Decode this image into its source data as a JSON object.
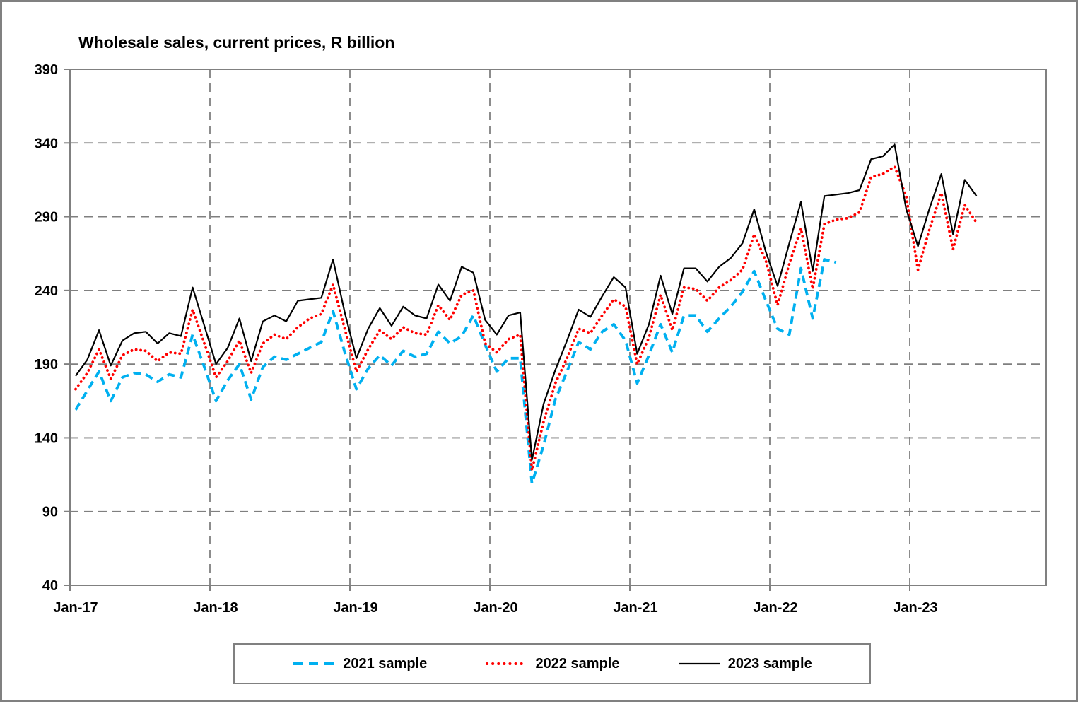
{
  "title": "Wholesale sales, current prices, R billion",
  "colors": {
    "grid": "#7F7F7F",
    "frame": "#808080",
    "background": "#FFFFFF"
  },
  "chart_data": {
    "type": "line",
    "title": "Wholesale sales, current prices, R billion",
    "xlabel": "",
    "ylabel": "R billion",
    "ylim": [
      40,
      390
    ],
    "y_ticks": [
      40,
      90,
      140,
      190,
      240,
      290,
      340,
      390
    ],
    "x_tick_labels": [
      "Jan-17",
      "Jan-18",
      "Jan-19",
      "Jan-20",
      "Jan-21",
      "Jan-22",
      "Jan-23"
    ],
    "grid": "dashed gray horizontal and vertical",
    "legend_position": "bottom",
    "months": [
      "Jan-17",
      "Feb-17",
      "Mar-17",
      "Apr-17",
      "May-17",
      "Jun-17",
      "Jul-17",
      "Aug-17",
      "Sep-17",
      "Oct-17",
      "Nov-17",
      "Dec-17",
      "Jan-18",
      "Feb-18",
      "Mar-18",
      "Apr-18",
      "May-18",
      "Jun-18",
      "Jul-18",
      "Aug-18",
      "Sep-18",
      "Oct-18",
      "Nov-18",
      "Dec-18",
      "Jan-19",
      "Feb-19",
      "Mar-19",
      "Apr-19",
      "May-19",
      "Jun-19",
      "Jul-19",
      "Aug-19",
      "Sep-19",
      "Oct-19",
      "Nov-19",
      "Dec-19",
      "Jan-20",
      "Feb-20",
      "Mar-20",
      "Apr-20",
      "May-20",
      "Jun-20",
      "Jul-20",
      "Aug-20",
      "Sep-20",
      "Oct-20",
      "Nov-20",
      "Dec-20",
      "Jan-21",
      "Feb-21",
      "Mar-21",
      "Apr-21",
      "May-21",
      "Jun-21",
      "Jul-21",
      "Aug-21",
      "Sep-21",
      "Oct-21",
      "Nov-21",
      "Dec-21",
      "Jan-22",
      "Feb-22",
      "Mar-22",
      "Apr-22",
      "May-22",
      "Jun-22",
      "Jul-22",
      "Aug-22",
      "Sep-22",
      "Oct-22",
      "Nov-22",
      "Dec-22",
      "Jan-23",
      "Feb-23",
      "Mar-23",
      "Apr-23",
      "May-23",
      "Jun-23"
    ],
    "series": [
      {
        "name": "2021 sample",
        "color": "#00B0F0",
        "style": "dashed",
        "values": [
          159,
          172,
          185,
          165,
          181,
          184,
          183,
          178,
          183,
          181,
          210,
          188,
          165,
          179,
          190,
          166,
          188,
          195,
          193,
          197,
          201,
          205,
          226,
          198,
          173,
          187,
          196,
          189,
          199,
          195,
          197,
          212,
          204,
          209,
          223,
          203,
          185,
          194,
          194,
          109,
          135,
          166,
          185,
          205,
          200,
          212,
          217,
          206,
          177,
          196,
          217,
          198,
          223,
          223,
          212,
          221,
          229,
          239,
          253,
          233,
          214,
          210,
          255,
          221,
          261,
          259
        ]
      },
      {
        "name": "2022 sample",
        "color": "#FF0000",
        "style": "dotted",
        "values": [
          173,
          184,
          200,
          180,
          196,
          200,
          199,
          192,
          198,
          197,
          227,
          204,
          181,
          192,
          206,
          184,
          204,
          210,
          207,
          215,
          221,
          224,
          244,
          214,
          185,
          200,
          213,
          207,
          215,
          211,
          210,
          230,
          220,
          237,
          240,
          204,
          198,
          207,
          210,
          118,
          151,
          177,
          194,
          214,
          211,
          223,
          234,
          229,
          190,
          208,
          237,
          213,
          242,
          241,
          233,
          242,
          247,
          254,
          278,
          260,
          230,
          258,
          282,
          241,
          285,
          288,
          289,
          293,
          317,
          319,
          324,
          304,
          254,
          282,
          306,
          268,
          298,
          286
        ]
      },
      {
        "name": "2023 sample",
        "color": "#000000",
        "style": "solid",
        "values": [
          182,
          193,
          213,
          189,
          206,
          211,
          212,
          204,
          211,
          209,
          242,
          216,
          190,
          201,
          221,
          192,
          219,
          223,
          219,
          233,
          234,
          235,
          261,
          225,
          194,
          214,
          228,
          216,
          229,
          223,
          221,
          244,
          233,
          256,
          252,
          220,
          210,
          223,
          225,
          125,
          163,
          186,
          206,
          227,
          222,
          236,
          249,
          242,
          197,
          217,
          250,
          224,
          255,
          255,
          246,
          256,
          262,
          272,
          295,
          266,
          243,
          272,
          300,
          253,
          304,
          305,
          306,
          308,
          329,
          331,
          339,
          295,
          270,
          296,
          319,
          278,
          315,
          304
        ]
      }
    ]
  }
}
